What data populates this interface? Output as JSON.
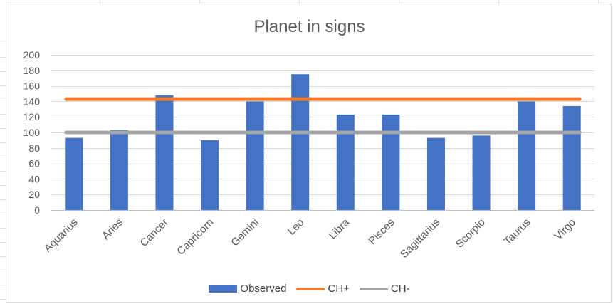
{
  "chart_data": {
    "type": "bar",
    "title": "Planet in signs",
    "categories": [
      "Aquarius",
      "Aries",
      "Cancer",
      "Capricorn",
      "Gemini",
      "Leo",
      "Libra",
      "Pisces",
      "Sagittarius",
      "Scorpio",
      "Taurus",
      "Virgo"
    ],
    "series": [
      {
        "name": "Observed",
        "kind": "bar",
        "color": "#4472c4",
        "values": [
          93,
          103,
          148,
          90,
          140,
          175,
          123,
          123,
          93,
          96,
          140,
          134
        ]
      },
      {
        "name": "CH+",
        "kind": "line",
        "color": "#ed7d31",
        "values": [
          143,
          143,
          143,
          143,
          143,
          143,
          143,
          143,
          143,
          143,
          143,
          143
        ]
      },
      {
        "name": "CH-",
        "kind": "line",
        "color": "#a5a5a5",
        "values": [
          100,
          100,
          100,
          100,
          100,
          100,
          100,
          100,
          100,
          100,
          100,
          100
        ]
      }
    ],
    "ylim": [
      0,
      200
    ],
    "yticks": [
      0,
      20,
      40,
      60,
      80,
      100,
      120,
      140,
      160,
      180,
      200
    ],
    "grid": true,
    "legend": "bottom"
  }
}
